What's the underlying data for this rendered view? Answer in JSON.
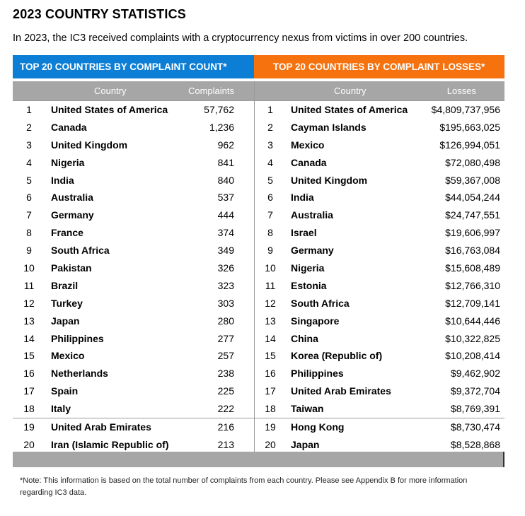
{
  "title": "2023 COUNTRY STATISTICS",
  "subtitle": "In 2023, the IC3 received complaints with a cryptocurrency nexus from victims in over 200 countries.",
  "left_table": {
    "header": "TOP 20 COUNTRIES BY COMPLAINT COUNT*",
    "col_country": "Country",
    "col_value": "Complaints",
    "rows": [
      {
        "rank": "1",
        "country": "United States of America",
        "value": "57,762"
      },
      {
        "rank": "2",
        "country": "Canada",
        "value": "1,236"
      },
      {
        "rank": "3",
        "country": "United Kingdom",
        "value": "962"
      },
      {
        "rank": "4",
        "country": "Nigeria",
        "value": "841"
      },
      {
        "rank": "5",
        "country": "India",
        "value": "840"
      },
      {
        "rank": "6",
        "country": "Australia",
        "value": "537"
      },
      {
        "rank": "7",
        "country": "Germany",
        "value": "444"
      },
      {
        "rank": "8",
        "country": "France",
        "value": "374"
      },
      {
        "rank": "9",
        "country": "South Africa",
        "value": "349"
      },
      {
        "rank": "10",
        "country": "Pakistan",
        "value": "326"
      },
      {
        "rank": "11",
        "country": "Brazil",
        "value": "323"
      },
      {
        "rank": "12",
        "country": "Turkey",
        "value": "303"
      },
      {
        "rank": "13",
        "country": "Japan",
        "value": "280"
      },
      {
        "rank": "14",
        "country": "Philippines",
        "value": "277"
      },
      {
        "rank": "15",
        "country": "Mexico",
        "value": "257"
      },
      {
        "rank": "16",
        "country": "Netherlands",
        "value": "238"
      },
      {
        "rank": "17",
        "country": "Spain",
        "value": "225"
      },
      {
        "rank": "18",
        "country": "Italy",
        "value": "222"
      },
      {
        "rank": "19",
        "country": "United Arab Emirates",
        "value": "216"
      },
      {
        "rank": "20",
        "country": "Iran (Islamic Republic of)",
        "value": "213"
      }
    ]
  },
  "right_table": {
    "header": "TOP 20 COUNTRIES BY COMPLAINT LOSSES*",
    "col_country": "Country",
    "col_value": "Losses",
    "rows": [
      {
        "rank": "1",
        "country": "United States of America",
        "value": "$4,809,737,956"
      },
      {
        "rank": "2",
        "country": "Cayman Islands",
        "value": "$195,663,025"
      },
      {
        "rank": "3",
        "country": "Mexico",
        "value": "$126,994,051"
      },
      {
        "rank": "4",
        "country": "Canada",
        "value": "$72,080,498"
      },
      {
        "rank": "5",
        "country": "United Kingdom",
        "value": "$59,367,008"
      },
      {
        "rank": "6",
        "country": "India",
        "value": "$44,054,244"
      },
      {
        "rank": "7",
        "country": "Australia",
        "value": "$24,747,551"
      },
      {
        "rank": "8",
        "country": "Israel",
        "value": "$19,606,997"
      },
      {
        "rank": "9",
        "country": "Germany",
        "value": "$16,763,084"
      },
      {
        "rank": "10",
        "country": "Nigeria",
        "value": "$15,608,489"
      },
      {
        "rank": "11",
        "country": "Estonia",
        "value": "$12,766,310"
      },
      {
        "rank": "12",
        "country": "South Africa",
        "value": "$12,709,141"
      },
      {
        "rank": "13",
        "country": "Singapore",
        "value": "$10,644,446"
      },
      {
        "rank": "14",
        "country": "China",
        "value": "$10,322,825"
      },
      {
        "rank": "15",
        "country": "Korea (Republic of)",
        "value": "$10,208,414"
      },
      {
        "rank": "16",
        "country": "Philippines",
        "value": "$9,462,902"
      },
      {
        "rank": "17",
        "country": "United Arab Emirates",
        "value": "$9,372,704"
      },
      {
        "rank": "18",
        "country": "Taiwan",
        "value": "$8,769,391"
      },
      {
        "rank": "19",
        "country": "Hong Kong",
        "value": "$8,730,474"
      },
      {
        "rank": "20",
        "country": "Japan",
        "value": "$8,528,868"
      }
    ]
  },
  "note": "*Note: This information is based on the total number of complaints from each country. Please see Appendix B for more information regarding IC3 data.",
  "colors": {
    "left_header": "#0c7ed6",
    "right_header": "#f5720e",
    "column_header": "#a6a6a6"
  }
}
